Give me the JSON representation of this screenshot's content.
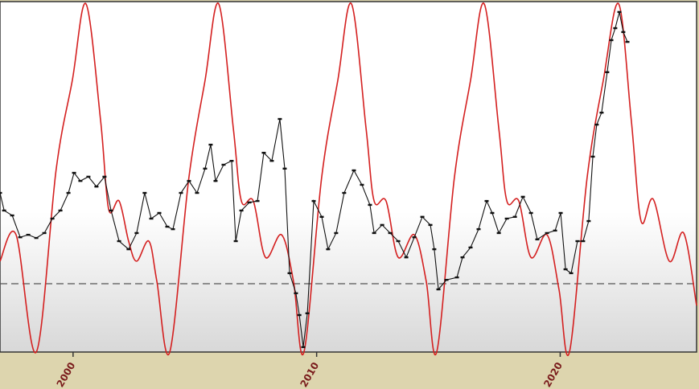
{
  "chart_data": {
    "type": "line",
    "xlim": [
      1997,
      2025.6
    ],
    "ylim": [
      0,
      100
    ],
    "xticks": [
      2000,
      2010,
      2020
    ],
    "reference_line": 19.4,
    "series": [
      {
        "color": "#d42020",
        "smooth": true,
        "markers": false,
        "x": [
          1997.0,
          1997.66,
          1998.49,
          1999.31,
          1999.97,
          2000.53,
          2001.13,
          2001.46,
          2001.89,
          2002.28,
          2002.61,
          2003.11,
          2003.44,
          2003.97,
          2004.76,
          2005.42,
          2005.98,
          2006.58,
          2006.91,
          2007.4,
          2007.9,
          2008.56,
          2009.05,
          2009.48,
          2010.21,
          2010.87,
          2011.43,
          2012.03,
          2012.36,
          2012.85,
          2013.35,
          2014.01,
          2014.5,
          2014.93,
          2015.66,
          2016.32,
          2016.88,
          2017.48,
          2017.81,
          2018.3,
          2018.8,
          2019.46,
          2019.95,
          2020.38,
          2021.11,
          2021.77,
          2022.4,
          2022.92,
          2023.32,
          2023.82,
          2024.48,
          2025.07,
          2025.6
        ],
        "values": [
          25.8,
          33.3,
          0,
          52.1,
          77.2,
          98.9,
          65.8,
          40.6,
          42.9,
          31.5,
          25.8,
          31.5,
          20.1,
          0,
          49.8,
          77.2,
          98.9,
          63.5,
          42.9,
          42.9,
          26.9,
          33.3,
          20.1,
          0,
          49.8,
          77.2,
          98.9,
          63.5,
          42.9,
          42.9,
          26.9,
          33.3,
          20.1,
          0,
          49.8,
          77.2,
          98.9,
          63.5,
          42.9,
          42.9,
          26.9,
          33.3,
          17.8,
          0,
          49.8,
          77.2,
          98.9,
          65.8,
          37.2,
          43.4,
          25.8,
          33.8,
          13.2
        ]
      },
      {
        "color": "#111111",
        "smooth": false,
        "markers": true,
        "x": [
          1997.0,
          1997.17,
          1997.5,
          1997.83,
          1998.16,
          1998.49,
          1998.82,
          1999.15,
          1999.48,
          1999.81,
          2000.04,
          2000.3,
          2000.63,
          2000.96,
          2001.29,
          2001.56,
          2001.89,
          2002.28,
          2002.61,
          2002.94,
          2003.21,
          2003.54,
          2003.87,
          2004.1,
          2004.43,
          2004.76,
          2005.09,
          2005.42,
          2005.65,
          2005.85,
          2006.18,
          2006.51,
          2006.68,
          2006.91,
          2007.24,
          2007.57,
          2007.83,
          2008.16,
          2008.49,
          2008.69,
          2008.89,
          2009.15,
          2009.29,
          2009.45,
          2009.62,
          2009.88,
          2010.21,
          2010.47,
          2010.8,
          2011.13,
          2011.53,
          2011.86,
          2012.19,
          2012.36,
          2012.69,
          2013.02,
          2013.35,
          2013.68,
          2014.01,
          2014.34,
          2014.67,
          2014.83,
          2015.0,
          2015.33,
          2015.76,
          2015.99,
          2016.32,
          2016.65,
          2016.98,
          2017.21,
          2017.48,
          2017.81,
          2018.14,
          2018.47,
          2018.8,
          2019.06,
          2019.46,
          2019.79,
          2020.02,
          2020.22,
          2020.45,
          2020.71,
          2020.94,
          2021.17,
          2021.34,
          2021.5,
          2021.7,
          2021.93,
          2022.1,
          2022.26,
          2022.43,
          2022.59,
          2022.76
        ],
        "values": [
          45.2,
          40.2,
          38.8,
          32.6,
          33.3,
          32.4,
          33.8,
          37.9,
          40.2,
          45.2,
          50.9,
          48.6,
          49.8,
          47.0,
          49.8,
          40.2,
          31.5,
          29.2,
          33.8,
          45.2,
          37.9,
          39.5,
          35.6,
          34.9,
          45.2,
          48.6,
          45.2,
          52.1,
          58.9,
          48.6,
          53.2,
          54.3,
          31.5,
          40.2,
          42.5,
          42.9,
          56.6,
          54.3,
          66.2,
          52.1,
          22.4,
          16.7,
          10.5,
          1.4,
          11.0,
          42.9,
          38.4,
          29.2,
          33.8,
          45.2,
          51.6,
          47.5,
          41.8,
          33.8,
          36.1,
          33.8,
          31.5,
          26.9,
          32.6,
          38.4,
          36.1,
          29.2,
          17.8,
          20.5,
          21.2,
          26.9,
          29.7,
          34.9,
          42.9,
          39.5,
          33.8,
          37.9,
          38.4,
          44.1,
          39.5,
          32.0,
          33.8,
          34.5,
          39.5,
          23.5,
          22.4,
          31.5,
          31.5,
          37.2,
          55.5,
          64.6,
          68.0,
          79.5,
          88.6,
          92.0,
          96.6,
          90.9,
          88.1
        ]
      }
    ]
  }
}
